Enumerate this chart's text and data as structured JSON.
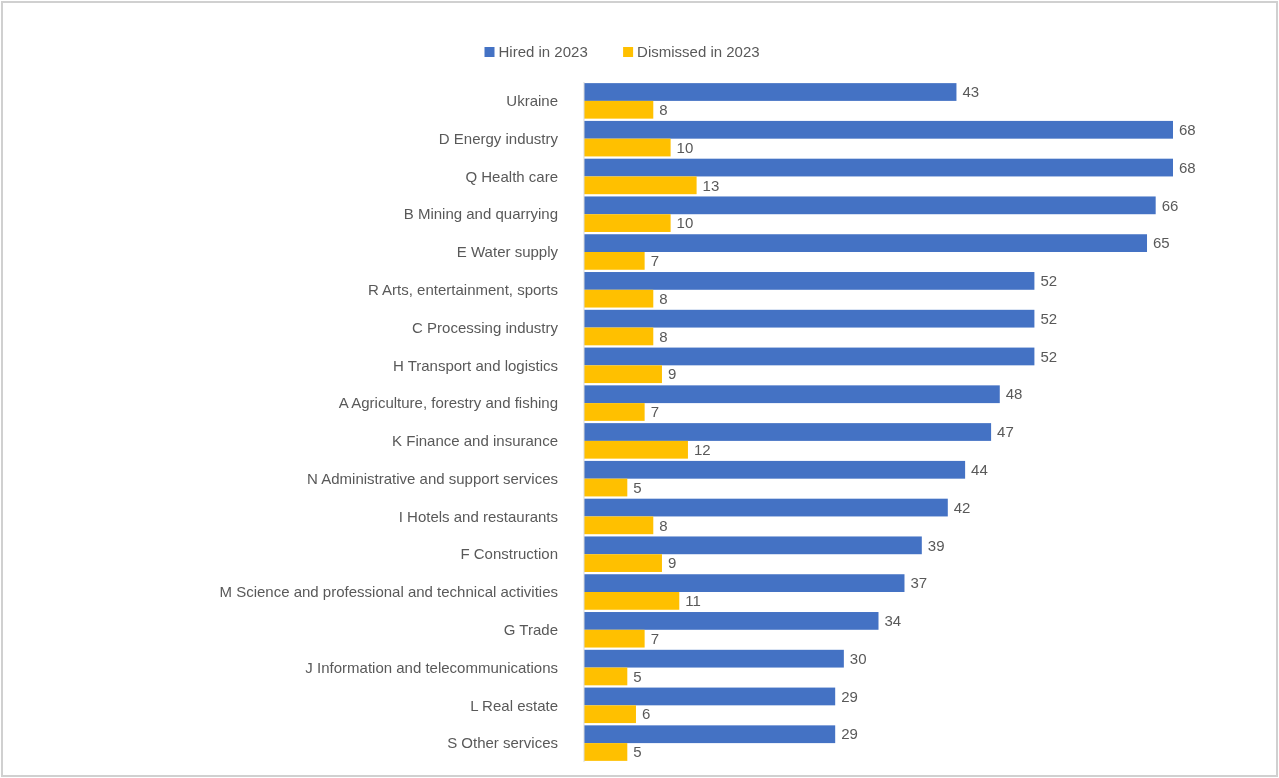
{
  "chart_data": {
    "type": "bar",
    "orientation": "horizontal",
    "categories": [
      "Ukraine",
      "D Energy industry",
      "Q Health care",
      "B Mining and quarrying",
      "E Water supply",
      "R Arts, entertainment, sports",
      "C Processing industry",
      "H Transport and logistics",
      "A Agriculture, forestry and fishing",
      "K Finance and insurance",
      "N Administrative and support services",
      "I Hotels and restaurants",
      "F Construction",
      "M Science and professional and technical activities",
      "G Trade",
      "J Information and telecommunications",
      "L Real estate",
      "S Other services"
    ],
    "series": [
      {
        "name": "Hired in 2023",
        "color": "#4472c4",
        "values": [
          43,
          68,
          68,
          66,
          65,
          52,
          52,
          52,
          48,
          47,
          44,
          42,
          39,
          37,
          34,
          30,
          29,
          29
        ]
      },
      {
        "name": "Dismissed in 2023",
        "color": "#ffc000",
        "values": [
          8,
          10,
          13,
          10,
          7,
          8,
          8,
          9,
          7,
          12,
          5,
          8,
          9,
          11,
          7,
          5,
          6,
          5
        ]
      }
    ],
    "tick_labels": "y",
    "data_labels": true,
    "legend": "top"
  }
}
